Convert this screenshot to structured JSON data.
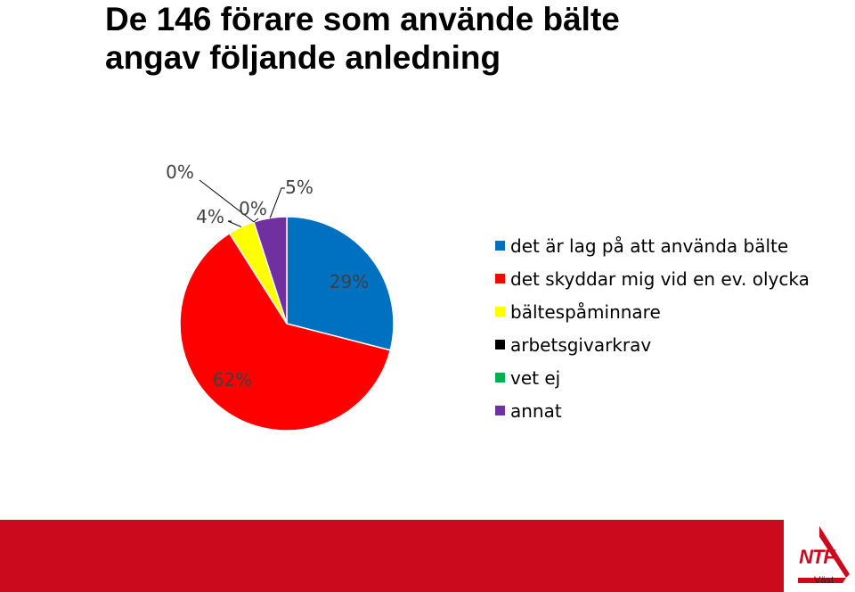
{
  "title": {
    "line1": "De 146 förare som använde bälte",
    "line2": "angav följande anledning"
  },
  "chart_data": {
    "type": "pie",
    "title": "De 146 förare som använde bälte angav följande anledning",
    "categories": [
      "det är lag på att använda bälte",
      "det skyddar mig vid en ev. olycka",
      "bältespåminnare",
      "arbetsgivarkrav",
      "vet ej",
      "annat"
    ],
    "values": [
      29,
      62,
      4,
      0,
      0,
      5
    ],
    "labels": [
      "29%",
      "62%",
      "4%",
      "0%",
      "0%",
      "5%"
    ],
    "colors": [
      "#0070c0",
      "#ff0000",
      "#ffff00",
      "#000000",
      "#00b050",
      "#7030a0"
    ],
    "legend": "right"
  },
  "footer": {
    "logo_text": "NTF",
    "logo_subtext": "Väst"
  }
}
